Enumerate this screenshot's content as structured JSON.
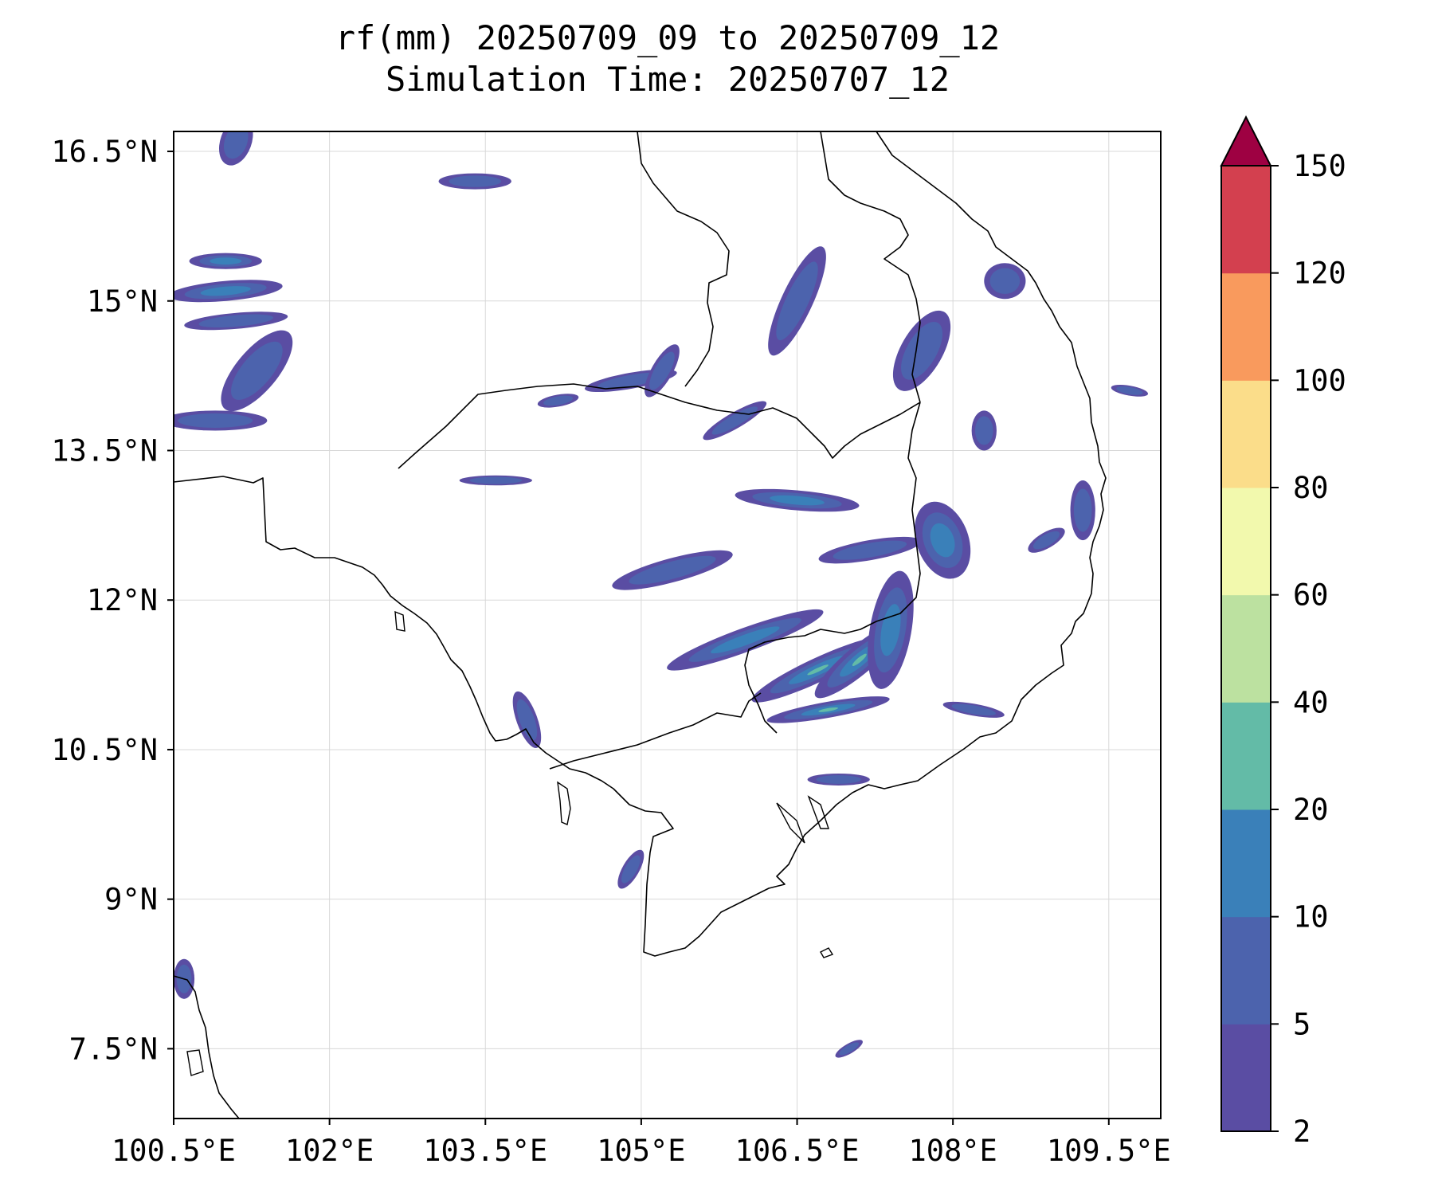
{
  "title": {
    "line1": "rf(mm) 20250709_09 to 20250709_12",
    "line2": "Simulation Time: 20250707_12"
  },
  "map": {
    "lon_range": [
      100.5,
      110.0
    ],
    "lat_range": [
      6.8,
      16.7
    ],
    "lon_ticks": [
      {
        "value": 100.5,
        "label": "100.5°E"
      },
      {
        "value": 102.0,
        "label": "102°E"
      },
      {
        "value": 103.5,
        "label": "103.5°E"
      },
      {
        "value": 105.0,
        "label": "105°E"
      },
      {
        "value": 106.5,
        "label": "106.5°E"
      },
      {
        "value": 108.0,
        "label": "108°E"
      },
      {
        "value": 109.5,
        "label": "109.5°E"
      }
    ],
    "lat_ticks": [
      {
        "value": 16.5,
        "label": "16.5°N"
      },
      {
        "value": 15.0,
        "label": "15°N"
      },
      {
        "value": 13.5,
        "label": "13.5°N"
      },
      {
        "value": 12.0,
        "label": "12°N"
      },
      {
        "value": 10.5,
        "label": "10.5°N"
      },
      {
        "value": 9.0,
        "label": "9°N"
      },
      {
        "value": 7.5,
        "label": "7.5°N"
      }
    ],
    "gridlines": true
  },
  "colorbar": {
    "levels": [
      "2",
      "5",
      "10",
      "20",
      "40",
      "60",
      "80",
      "100",
      "120",
      "150"
    ],
    "colors": [
      "#5a4da3",
      "#4c63ad",
      "#3a80b9",
      "#63bba7",
      "#bce1a0",
      "#f2f9ad",
      "#fbdd8a",
      "#f99a5d",
      "#d3404f"
    ],
    "extend_color": "#9e0142"
  },
  "rain_cells": [
    {
      "lon": 104.9,
      "lat": 14.2,
      "rx": 0.45,
      "ry": 0.08,
      "rot": 10,
      "level": 1
    },
    {
      "lon": 106.5,
      "lat": 13.0,
      "rx": 0.6,
      "ry": 0.1,
      "rot": -5,
      "level": 2
    },
    {
      "lon": 107.2,
      "lat": 12.5,
      "rx": 0.5,
      "ry": 0.1,
      "rot": 10,
      "level": 1
    },
    {
      "lon": 107.9,
      "lat": 12.6,
      "rx": 0.25,
      "ry": 0.4,
      "rot": 20,
      "level": 2
    },
    {
      "lon": 105.3,
      "lat": 12.3,
      "rx": 0.6,
      "ry": 0.12,
      "rot": 15,
      "level": 1
    },
    {
      "lon": 106.0,
      "lat": 11.6,
      "rx": 0.8,
      "ry": 0.12,
      "rot": 20,
      "level": 2
    },
    {
      "lon": 106.7,
      "lat": 11.3,
      "rx": 0.7,
      "ry": 0.12,
      "rot": 25,
      "level": 3
    },
    {
      "lon": 107.1,
      "lat": 11.4,
      "rx": 0.55,
      "ry": 0.14,
      "rot": 40,
      "level": 3
    },
    {
      "lon": 107.4,
      "lat": 11.7,
      "rx": 0.2,
      "ry": 0.6,
      "rot": -10,
      "level": 2
    },
    {
      "lon": 106.8,
      "lat": 10.9,
      "rx": 0.6,
      "ry": 0.08,
      "rot": 10,
      "level": 3
    },
    {
      "lon": 106.5,
      "lat": 15.0,
      "rx": 0.15,
      "ry": 0.6,
      "rot": -25,
      "level": 1
    },
    {
      "lon": 107.7,
      "lat": 14.5,
      "rx": 0.2,
      "ry": 0.45,
      "rot": -30,
      "level": 1
    },
    {
      "lon": 108.3,
      "lat": 13.7,
      "rx": 0.12,
      "ry": 0.2,
      "rot": 0,
      "level": 1
    },
    {
      "lon": 109.25,
      "lat": 12.9,
      "rx": 0.12,
      "ry": 0.3,
      "rot": 0,
      "level": 1
    },
    {
      "lon": 101.0,
      "lat": 15.1,
      "rx": 0.55,
      "ry": 0.1,
      "rot": 5,
      "level": 2
    },
    {
      "lon": 101.0,
      "lat": 15.4,
      "rx": 0.35,
      "ry": 0.08,
      "rot": 0,
      "level": 2
    },
    {
      "lon": 101.1,
      "lat": 14.8,
      "rx": 0.5,
      "ry": 0.08,
      "rot": 5,
      "level": 1
    },
    {
      "lon": 101.3,
      "lat": 14.3,
      "rx": 0.2,
      "ry": 0.5,
      "rot": -40,
      "level": 1
    },
    {
      "lon": 100.9,
      "lat": 13.8,
      "rx": 0.5,
      "ry": 0.1,
      "rot": 0,
      "level": 1
    },
    {
      "lon": 101.1,
      "lat": 16.6,
      "rx": 0.15,
      "ry": 0.25,
      "rot": -20,
      "level": 1
    },
    {
      "lon": 103.4,
      "lat": 16.2,
      "rx": 0.35,
      "ry": 0.08,
      "rot": 0,
      "level": 1
    },
    {
      "lon": 103.6,
      "lat": 13.2,
      "rx": 0.35,
      "ry": 0.05,
      "rot": 0,
      "level": 1
    },
    {
      "lon": 104.2,
      "lat": 14.0,
      "rx": 0.2,
      "ry": 0.06,
      "rot": 10,
      "level": 1
    },
    {
      "lon": 103.9,
      "lat": 10.8,
      "rx": 0.1,
      "ry": 0.3,
      "rot": 20,
      "level": 1
    },
    {
      "lon": 105.2,
      "lat": 14.3,
      "rx": 0.1,
      "ry": 0.3,
      "rot": -30,
      "level": 1
    },
    {
      "lon": 105.9,
      "lat": 13.8,
      "rx": 0.35,
      "ry": 0.08,
      "rot": 30,
      "level": 1
    },
    {
      "lon": 106.9,
      "lat": 10.2,
      "rx": 0.3,
      "ry": 0.06,
      "rot": 0,
      "level": 1
    },
    {
      "lon": 108.2,
      "lat": 10.9,
      "rx": 0.3,
      "ry": 0.06,
      "rot": -10,
      "level": 1
    },
    {
      "lon": 104.9,
      "lat": 9.3,
      "rx": 0.08,
      "ry": 0.22,
      "rot": -30,
      "level": 1
    },
    {
      "lon": 107.0,
      "lat": 7.5,
      "rx": 0.15,
      "ry": 0.05,
      "rot": 30,
      "level": 1
    },
    {
      "lon": 109.7,
      "lat": 14.1,
      "rx": 0.18,
      "ry": 0.05,
      "rot": -10,
      "level": 1
    },
    {
      "lon": 108.5,
      "lat": 15.2,
      "rx": 0.2,
      "ry": 0.18,
      "rot": 0,
      "level": 1
    },
    {
      "lon": 108.9,
      "lat": 12.6,
      "rx": 0.2,
      "ry": 0.08,
      "rot": 30,
      "level": 1
    },
    {
      "lon": 100.6,
      "lat": 8.2,
      "rx": 0.1,
      "ry": 0.2,
      "rot": 0,
      "level": 1
    }
  ]
}
